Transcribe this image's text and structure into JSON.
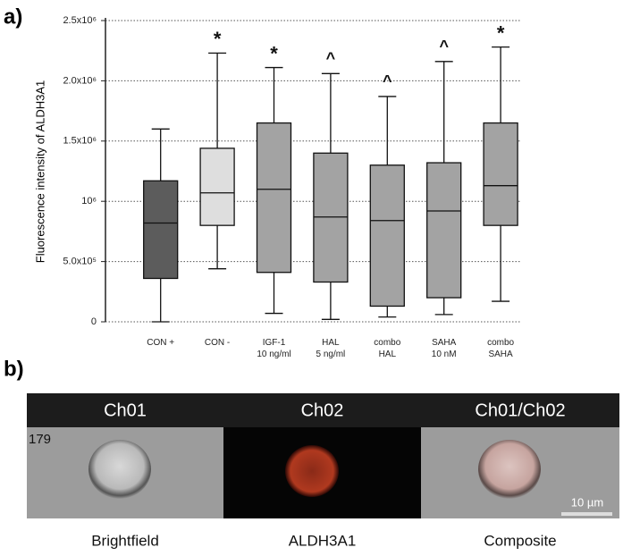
{
  "chart_data": {
    "type": "box",
    "panel_label": "a)",
    "y_label": "Fluorescence intensity of ALDH3A1",
    "categories": [
      "CON +",
      "CON -",
      "IGF-1\n10 ng/ml",
      "HAL\n5 ng/ml",
      "combo\nHAL",
      "SAHA\n10 nM",
      "combo\nSAHA"
    ],
    "boxes": [
      {
        "min": 0,
        "q1": 360000,
        "median": 820000,
        "q3": 1170000,
        "max": 1600000,
        "color": "#5c5c5c"
      },
      {
        "min": 440000,
        "q1": 800000,
        "median": 1070000,
        "q3": 1440000,
        "max": 2230000,
        "color": "#dedede"
      },
      {
        "min": 70000,
        "q1": 410000,
        "median": 1100000,
        "q3": 1650000,
        "max": 2110000,
        "color": "#a3a3a3"
      },
      {
        "min": 20000,
        "q1": 330000,
        "median": 870000,
        "q3": 1400000,
        "max": 2060000,
        "color": "#a3a3a3"
      },
      {
        "min": 40000,
        "q1": 130000,
        "median": 840000,
        "q3": 1300000,
        "max": 1870000,
        "color": "#a3a3a3"
      },
      {
        "min": 60000,
        "q1": 200000,
        "median": 920000,
        "q3": 1320000,
        "max": 2160000,
        "color": "#a3a3a3"
      },
      {
        "min": 170000,
        "q1": 800000,
        "median": 1130000,
        "q3": 1650000,
        "max": 2280000,
        "color": "#a3a3a3"
      }
    ],
    "markers": [
      null,
      "*",
      "*",
      "^",
      "^",
      "^",
      "*"
    ],
    "ylim": [
      0,
      2500000
    ],
    "yticks": [
      0,
      {
        "value": 500000,
        "label": "5.0x10⁵"
      },
      {
        "value": 1000000,
        "label": "10⁶"
      },
      {
        "value": 1500000,
        "label": "1.5x10⁶"
      },
      {
        "value": 2000000,
        "label": "2.0x10⁶"
      },
      {
        "value": 2500000,
        "label": "2.5x10⁶"
      }
    ],
    "grid": true
  },
  "image_panel": {
    "panel_label": "b)",
    "channels": [
      "Ch01",
      "Ch02",
      "Ch01/Ch02"
    ],
    "object_id": "179",
    "scale_bar": "10 µm",
    "captions": [
      "Brightfield",
      "ALDH3A1",
      "Composite"
    ]
  }
}
